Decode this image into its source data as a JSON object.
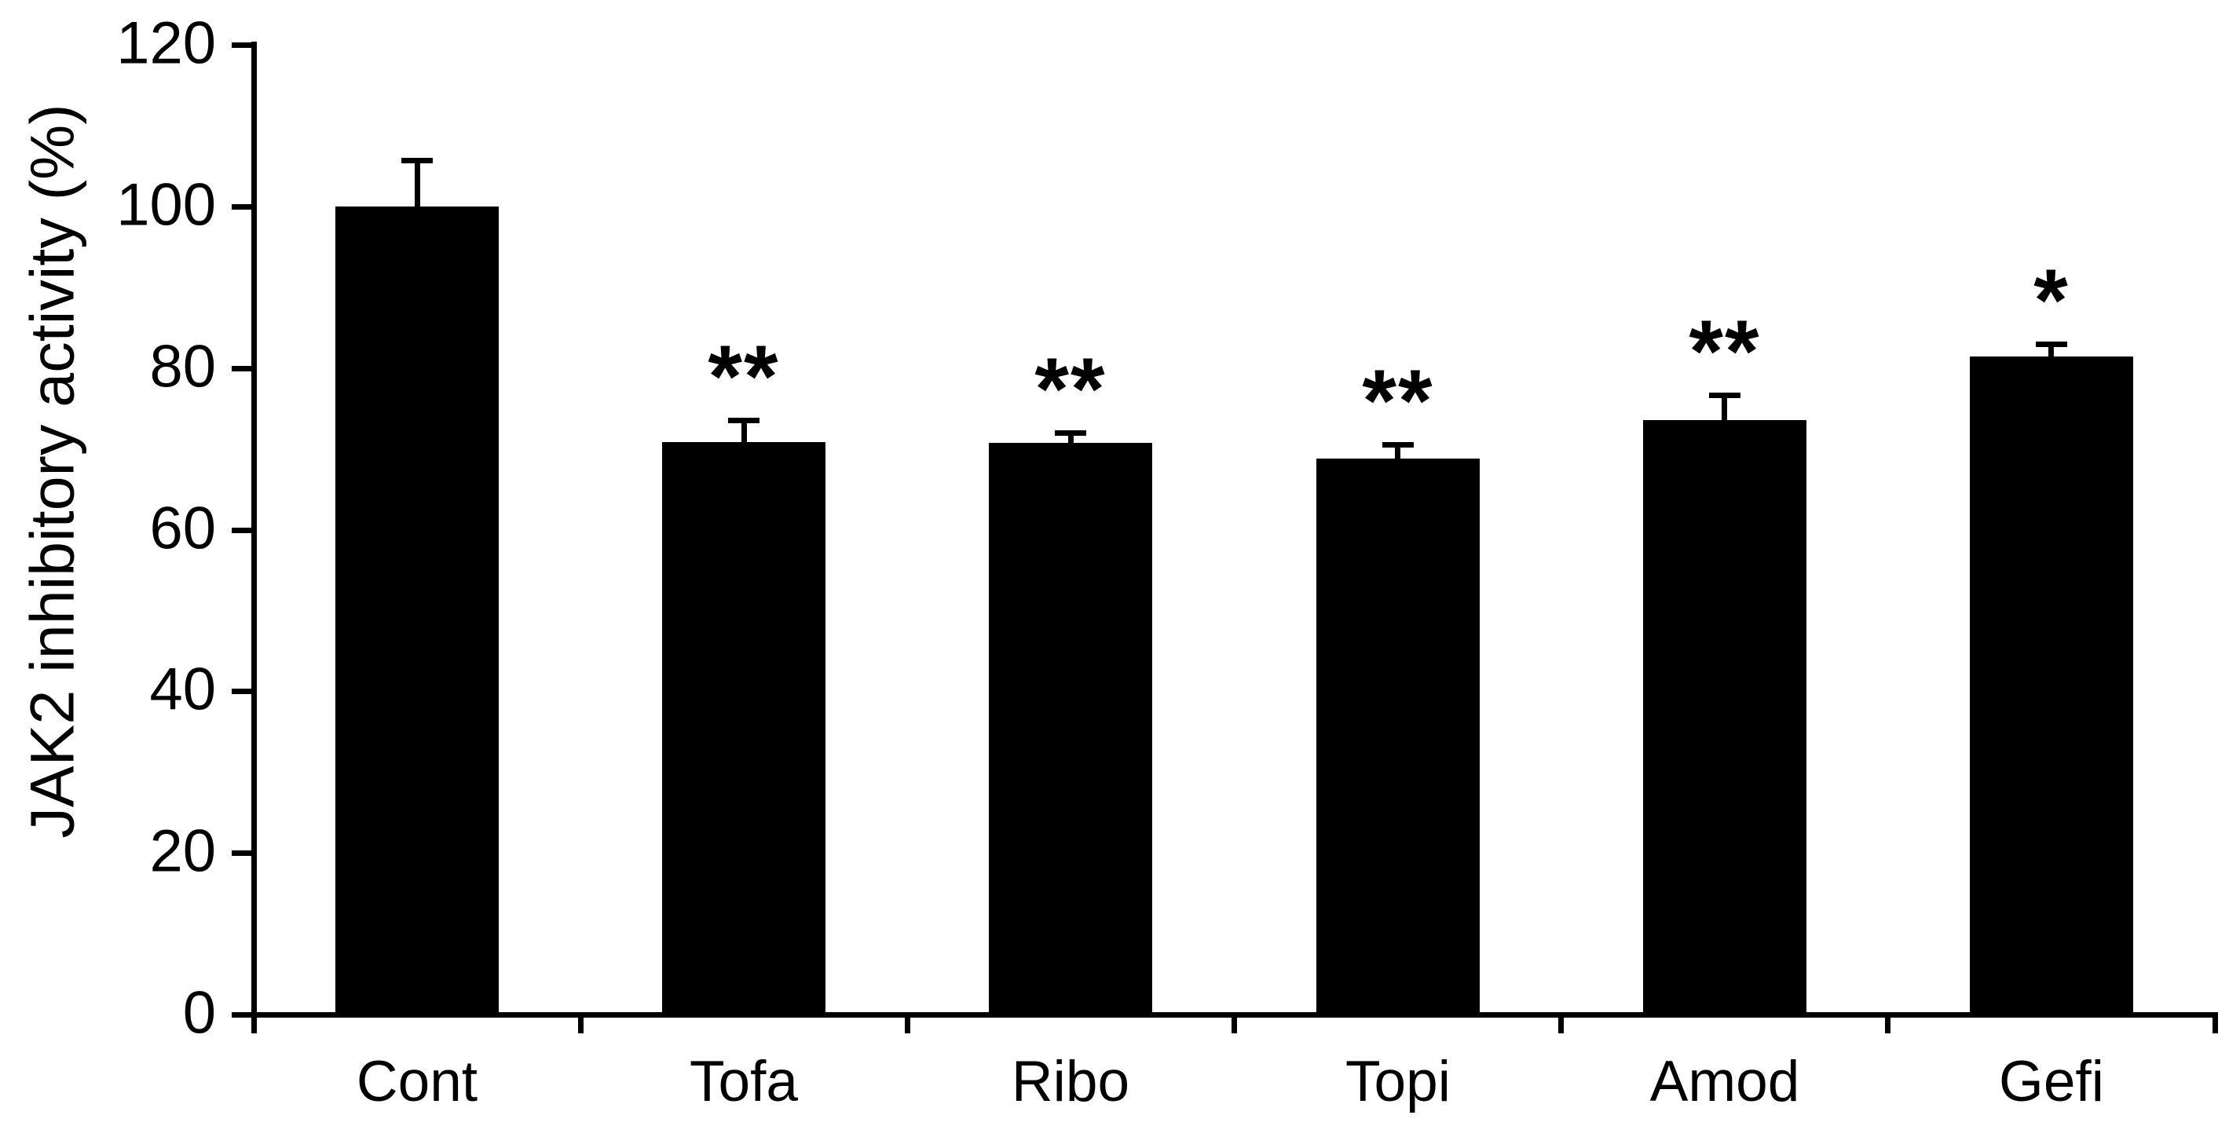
{
  "figure": {
    "background": "#ffffff",
    "text_color": "#000000"
  },
  "chart_data": {
    "type": "bar",
    "title": "",
    "xlabel": "",
    "ylabel": "JAK2 inhibitory activity (%)",
    "categories": [
      "Cont",
      "Tofa",
      "Ribo",
      "Topi",
      "Amod",
      "Gefi"
    ],
    "values": [
      100.0,
      70.8,
      70.7,
      68.8,
      73.6,
      81.4
    ],
    "errors": [
      5.7,
      2.8,
      1.3,
      1.7,
      3.1,
      1.6
    ],
    "error_bar_style": "upper-cap-only",
    "significance": [
      "",
      "**",
      "**",
      "**",
      "**",
      "*"
    ],
    "ylim": [
      0,
      120
    ],
    "yticks": [
      0,
      20,
      40,
      60,
      80,
      100,
      120
    ],
    "grid": false,
    "legend": null,
    "bar_color": "#000000",
    "axis_color": "#000000"
  }
}
